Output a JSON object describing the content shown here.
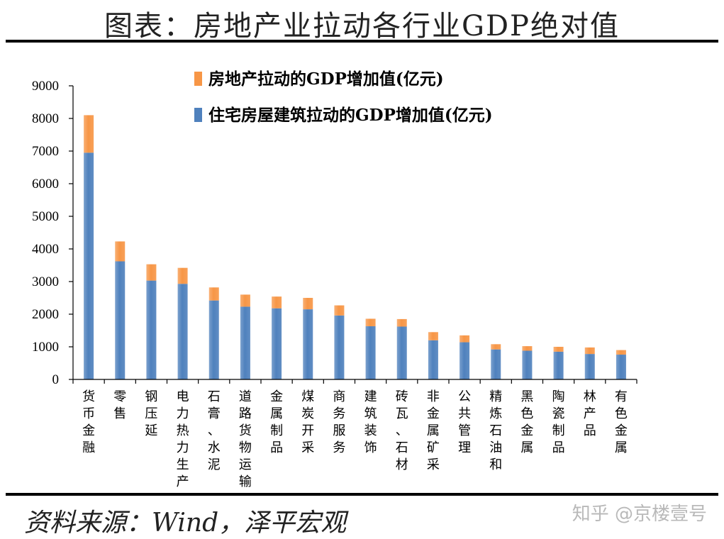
{
  "title": "图表：房地产业拉动各行业GDP绝对值",
  "source": "资料来源：Wind，泽平宏观",
  "watermark": "知乎 @京楼壹号",
  "chart_data": {
    "type": "bar",
    "stacked": true,
    "categories": [
      "货币金融",
      "零售",
      "钢压延",
      "电力热力生产",
      "石膏、水泥",
      "道路货物运输",
      "金属制品",
      "煤炭开采",
      "商务服务",
      "建筑装饰",
      "砖瓦、石材",
      "非金属矿采",
      "公共管理",
      "精炼石油和",
      "黑色金属",
      "陶瓷制品",
      "林产品",
      "有色金属"
    ],
    "series": [
      {
        "name": "住宅房屋建筑拉动的GDP增加值(亿元)",
        "color": "#4f81bd",
        "values": [
          6950,
          3620,
          3030,
          2930,
          2420,
          2230,
          2180,
          2150,
          1960,
          1630,
          1620,
          1200,
          1140,
          920,
          880,
          850,
          780,
          760
        ]
      },
      {
        "name": "房地产拉动的GDP增加值(亿元)",
        "color": "#f79646",
        "values": [
          1150,
          610,
          500,
          490,
          400,
          370,
          360,
          350,
          310,
          230,
          230,
          250,
          210,
          160,
          140,
          150,
          200,
          140
        ]
      }
    ],
    "legend_order": [
      1,
      0
    ],
    "ylim": [
      0,
      9000
    ],
    "yticks": [
      0,
      1000,
      2000,
      3000,
      4000,
      5000,
      6000,
      7000,
      8000,
      9000
    ],
    "legend_position": "top",
    "grid": false
  }
}
